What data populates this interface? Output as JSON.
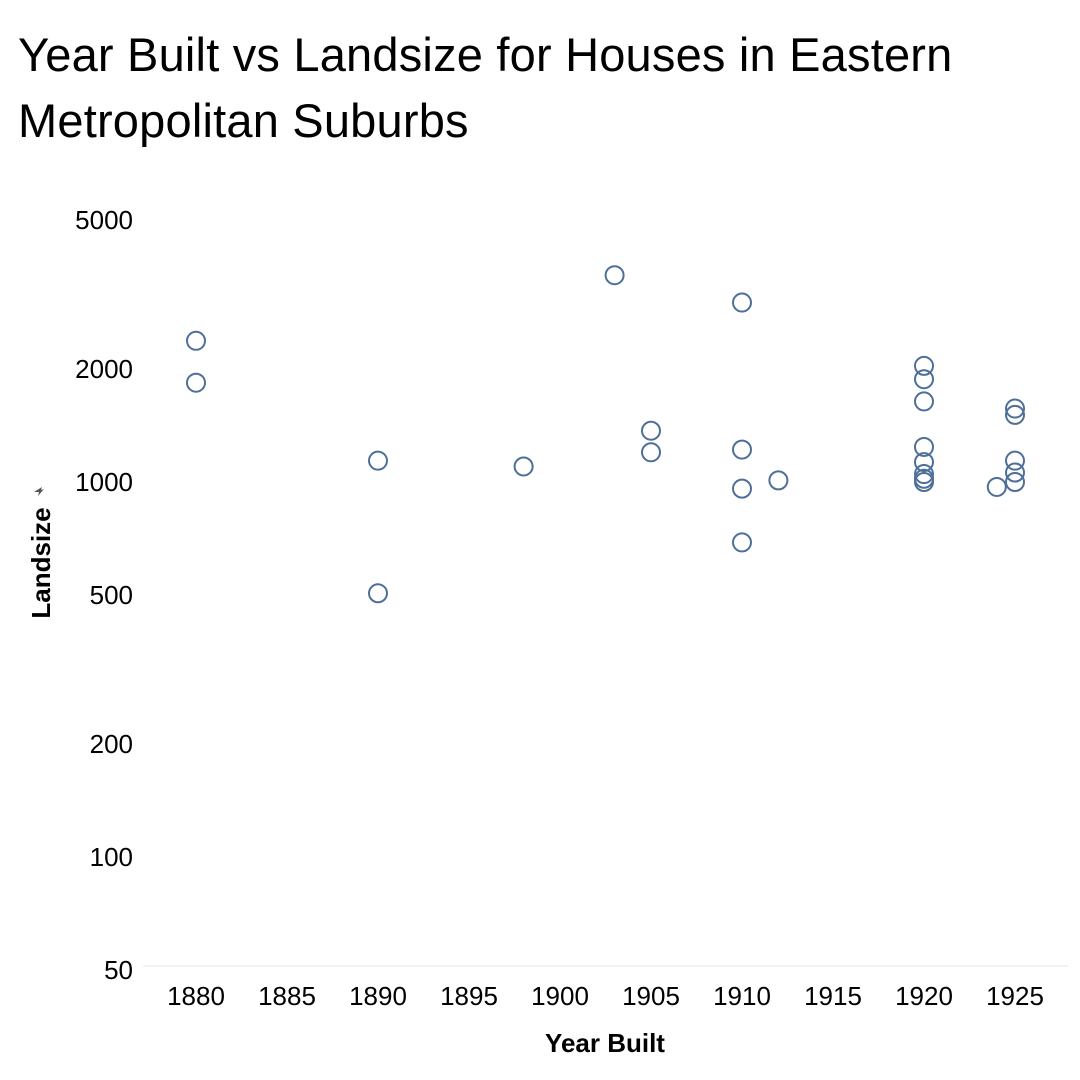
{
  "chart_data": {
    "type": "scatter",
    "title": "Year Built vs Landsize for Houses in Eastern Metropolitan Suburbs",
    "xlabel": "Year Built",
    "ylabel": "Landsize",
    "yscale": "log",
    "xlim": [
      1875,
      1927
    ],
    "ylim": [
      40,
      6000
    ],
    "x_ticks": [
      1880,
      1885,
      1890,
      1895,
      1900,
      1905,
      1910,
      1915,
      1920,
      1925
    ],
    "y_ticks": [
      50,
      100,
      200,
      500,
      1000,
      2000,
      5000
    ],
    "grid": false,
    "legend": "none",
    "marker_color": "#4e6f98",
    "marker": "hollow-circle",
    "points": [
      {
        "x": 1880,
        "y": 2380
      },
      {
        "x": 1880,
        "y": 1840
      },
      {
        "x": 1890,
        "y": 1140
      },
      {
        "x": 1890,
        "y": 505
      },
      {
        "x": 1898,
        "y": 1100
      },
      {
        "x": 1903,
        "y": 3560
      },
      {
        "x": 1905,
        "y": 1370
      },
      {
        "x": 1905,
        "y": 1200
      },
      {
        "x": 1910,
        "y": 3010
      },
      {
        "x": 1910,
        "y": 1220
      },
      {
        "x": 1910,
        "y": 960
      },
      {
        "x": 1910,
        "y": 690
      },
      {
        "x": 1912,
        "y": 1010
      },
      {
        "x": 1920,
        "y": 2040
      },
      {
        "x": 1920,
        "y": 1880
      },
      {
        "x": 1920,
        "y": 1640
      },
      {
        "x": 1920,
        "y": 1240
      },
      {
        "x": 1920,
        "y": 1130
      },
      {
        "x": 1920,
        "y": 1050
      },
      {
        "x": 1920,
        "y": 1020
      },
      {
        "x": 1920,
        "y": 1000
      },
      {
        "x": 1924,
        "y": 970
      },
      {
        "x": 1925,
        "y": 1570
      },
      {
        "x": 1925,
        "y": 1510
      },
      {
        "x": 1925,
        "y": 1140
      },
      {
        "x": 1925,
        "y": 1060
      },
      {
        "x": 1925,
        "y": 1000
      }
    ]
  }
}
